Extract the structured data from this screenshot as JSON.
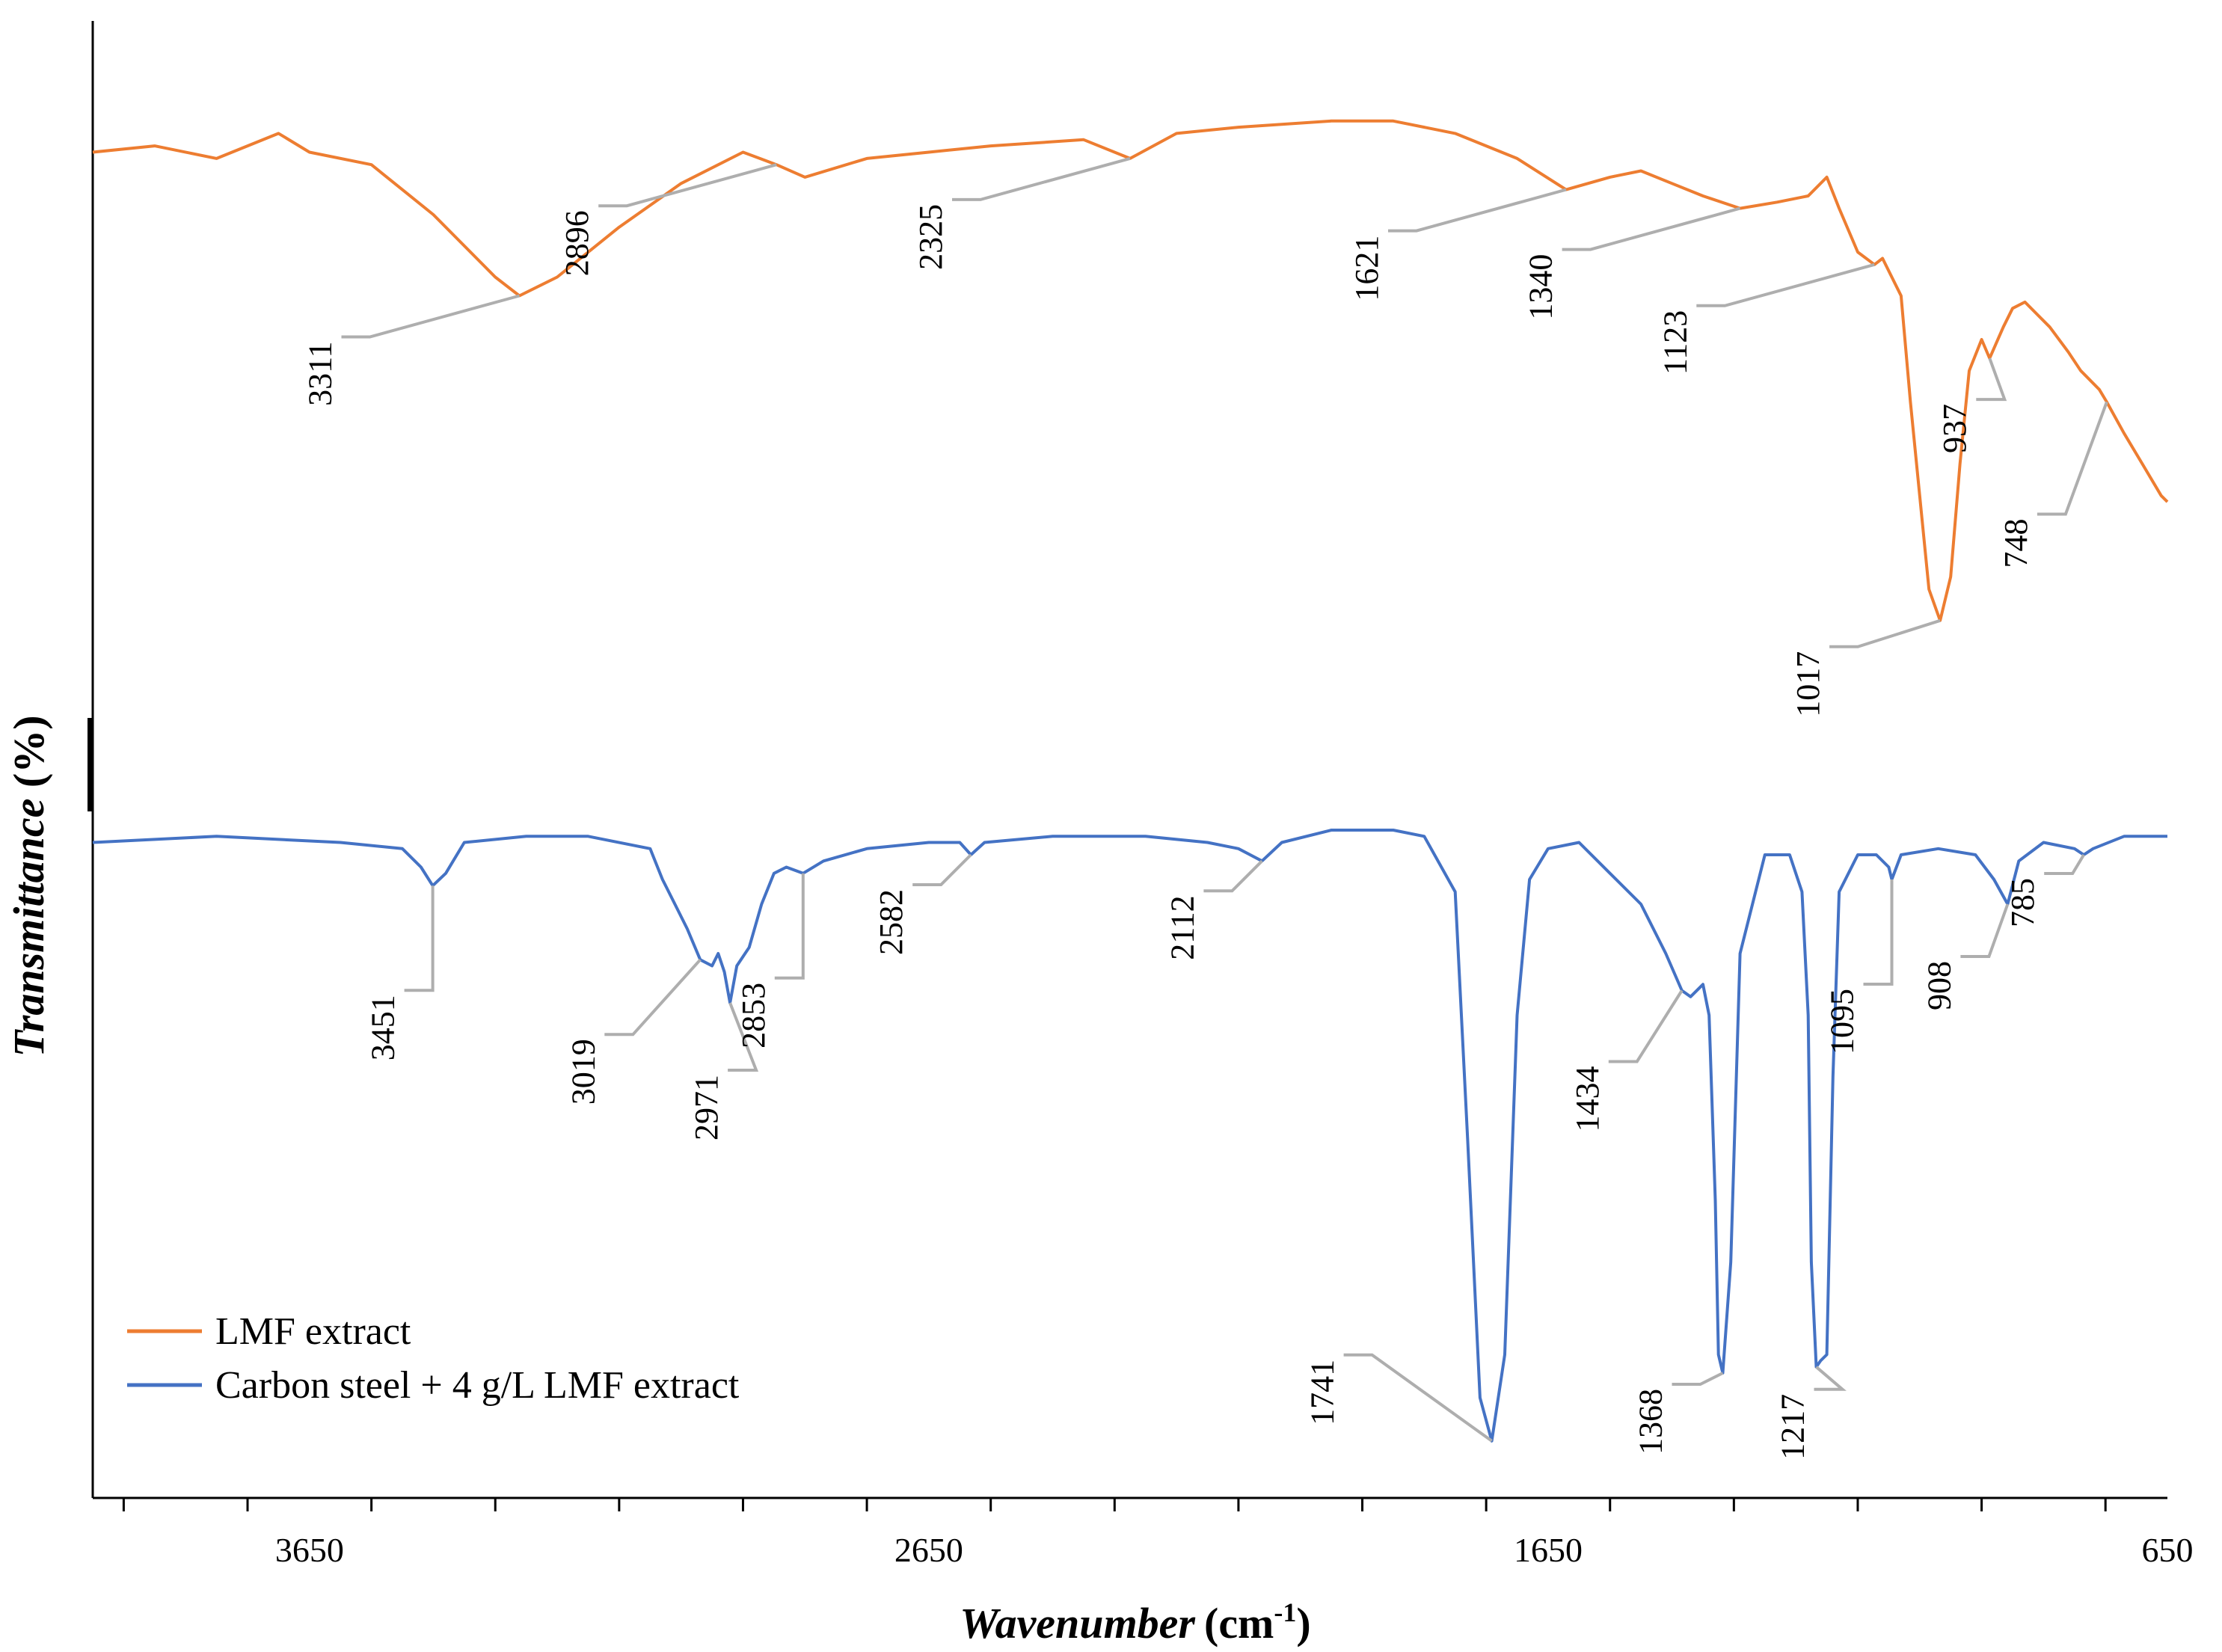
{
  "chart_data": {
    "type": "line",
    "title": "",
    "xlabel": "Wavenumber",
    "xunit": "(cm",
    "xunit_exp": "-1",
    "xunit_close": ")",
    "ylabel": "Transmittance (%)",
    "ylabel_main": "Transmittance",
    "ylabel_unit": " (%)",
    "xlim": [
      4000,
      650
    ],
    "x_reversed": true,
    "xticks": [
      3650,
      2650,
      1650,
      650
    ],
    "xtick_labels": [
      "3650",
      "2650",
      "1650",
      "650"
    ],
    "minor_step": 200,
    "grid": false,
    "legend_position": "bottom-left",
    "yaxis_scale": "arbitrary (offset traces)",
    "series": [
      {
        "name": "LMF extract",
        "color": "#ED7D31",
        "points": [
          [
            4000,
            90
          ],
          [
            3900,
            91
          ],
          [
            3800,
            89
          ],
          [
            3700,
            93
          ],
          [
            3650,
            90
          ],
          [
            3550,
            88
          ],
          [
            3450,
            80
          ],
          [
            3350,
            70
          ],
          [
            3311,
            67
          ],
          [
            3250,
            70
          ],
          [
            3150,
            78
          ],
          [
            3050,
            85
          ],
          [
            2950,
            90
          ],
          [
            2896,
            88
          ],
          [
            2850,
            86
          ],
          [
            2750,
            89
          ],
          [
            2650,
            90
          ],
          [
            2550,
            91
          ],
          [
            2400,
            92
          ],
          [
            2325,
            89
          ],
          [
            2250,
            93
          ],
          [
            2150,
            94
          ],
          [
            2000,
            95
          ],
          [
            1900,
            95
          ],
          [
            1800,
            93
          ],
          [
            1700,
            89
          ],
          [
            1621,
            84
          ],
          [
            1550,
            86
          ],
          [
            1500,
            87
          ],
          [
            1450,
            85
          ],
          [
            1400,
            83
          ],
          [
            1340,
            81
          ],
          [
            1280,
            82
          ],
          [
            1230,
            83
          ],
          [
            1200,
            86
          ],
          [
            1180,
            81
          ],
          [
            1150,
            74
          ],
          [
            1123,
            72
          ],
          [
            1110,
            73
          ],
          [
            1095,
            70
          ],
          [
            1080,
            67
          ],
          [
            1065,
            50
          ],
          [
            1050,
            35
          ],
          [
            1035,
            20
          ],
          [
            1017,
            15
          ],
          [
            1000,
            22
          ],
          [
            985,
            40
          ],
          [
            970,
            55
          ],
          [
            950,
            60
          ],
          [
            937,
            57
          ],
          [
            915,
            62
          ],
          [
            900,
            65
          ],
          [
            880,
            66
          ],
          [
            860,
            64
          ],
          [
            840,
            62
          ],
          [
            810,
            58
          ],
          [
            790,
            55
          ],
          [
            760,
            52
          ],
          [
            748,
            50
          ],
          [
            720,
            45
          ],
          [
            690,
            40
          ],
          [
            660,
            35
          ],
          [
            650,
            34
          ]
        ],
        "peaks": [
          {
            "x": 3311,
            "label": "3311"
          },
          {
            "x": 2896,
            "label": "2896"
          },
          {
            "x": 2325,
            "label": "2325"
          },
          {
            "x": 1621,
            "label": "1621"
          },
          {
            "x": 1340,
            "label": "1340"
          },
          {
            "x": 1123,
            "label": "1123"
          },
          {
            "x": 1017,
            "label": "1017"
          },
          {
            "x": 937,
            "label": "937"
          },
          {
            "x": 748,
            "label": "748"
          }
        ]
      },
      {
        "name": "Carbon steel + 4 g/L LMF extract",
        "color": "#4472C4",
        "points": [
          [
            4000,
            98
          ],
          [
            3800,
            99
          ],
          [
            3600,
            98
          ],
          [
            3500,
            97
          ],
          [
            3470,
            94
          ],
          [
            3451,
            91
          ],
          [
            3430,
            93
          ],
          [
            3400,
            98
          ],
          [
            3300,
            99
          ],
          [
            3200,
            99
          ],
          [
            3100,
            97
          ],
          [
            3080,
            92
          ],
          [
            3060,
            88
          ],
          [
            3040,
            84
          ],
          [
            3019,
            79
          ],
          [
            3000,
            78
          ],
          [
            2990,
            80
          ],
          [
            2980,
            77
          ],
          [
            2971,
            72
          ],
          [
            2960,
            78
          ],
          [
            2940,
            81
          ],
          [
            2920,
            88
          ],
          [
            2900,
            93
          ],
          [
            2880,
            94
          ],
          [
            2853,
            93
          ],
          [
            2820,
            95
          ],
          [
            2750,
            97
          ],
          [
            2650,
            98
          ],
          [
            2600,
            98
          ],
          [
            2582,
            96
          ],
          [
            2560,
            98
          ],
          [
            2450,
            99
          ],
          [
            2300,
            99
          ],
          [
            2200,
            98
          ],
          [
            2150,
            97
          ],
          [
            2112,
            95
          ],
          [
            2080,
            98
          ],
          [
            2000,
            100
          ],
          [
            1900,
            100
          ],
          [
            1850,
            99
          ],
          [
            1800,
            90
          ],
          [
            1780,
            50
          ],
          [
            1760,
            8
          ],
          [
            1741,
            1
          ],
          [
            1720,
            15
          ],
          [
            1700,
            70
          ],
          [
            1680,
            92
          ],
          [
            1650,
            97
          ],
          [
            1600,
            98
          ],
          [
            1550,
            93
          ],
          [
            1500,
            88
          ],
          [
            1460,
            80
          ],
          [
            1434,
            74
          ],
          [
            1420,
            73
          ],
          [
            1400,
            75
          ],
          [
            1390,
            70
          ],
          [
            1380,
            40
          ],
          [
            1375,
            15
          ],
          [
            1368,
            12
          ],
          [
            1355,
            30
          ],
          [
            1340,
            80
          ],
          [
            1300,
            96
          ],
          [
            1260,
            96
          ],
          [
            1240,
            90
          ],
          [
            1230,
            70
          ],
          [
            1225,
            30
          ],
          [
            1217,
            13
          ],
          [
            1210,
            14
          ],
          [
            1200,
            15
          ],
          [
            1190,
            60
          ],
          [
            1180,
            90
          ],
          [
            1150,
            96
          ],
          [
            1120,
            96
          ],
          [
            1100,
            94
          ],
          [
            1095,
            92
          ],
          [
            1080,
            96
          ],
          [
            1020,
            97
          ],
          [
            960,
            96
          ],
          [
            930,
            92
          ],
          [
            908,
            88
          ],
          [
            890,
            95
          ],
          [
            850,
            98
          ],
          [
            800,
            97
          ],
          [
            785,
            96
          ],
          [
            770,
            97
          ],
          [
            720,
            99
          ],
          [
            650,
            99
          ]
        ],
        "peaks": [
          {
            "x": 3451,
            "label": "3451"
          },
          {
            "x": 3019,
            "label": "3019"
          },
          {
            "x": 2971,
            "label": "2971"
          },
          {
            "x": 2853,
            "label": "2853"
          },
          {
            "x": 2582,
            "label": "2582"
          },
          {
            "x": 2112,
            "label": "2112"
          },
          {
            "x": 1741,
            "label": "1741"
          },
          {
            "x": 1434,
            "label": "1434"
          },
          {
            "x": 1368,
            "label": "1368"
          },
          {
            "x": 1217,
            "label": "1217"
          },
          {
            "x": 1095,
            "label": "1095"
          },
          {
            "x": 908,
            "label": "908"
          },
          {
            "x": 785,
            "label": "785"
          }
        ]
      }
    ]
  }
}
